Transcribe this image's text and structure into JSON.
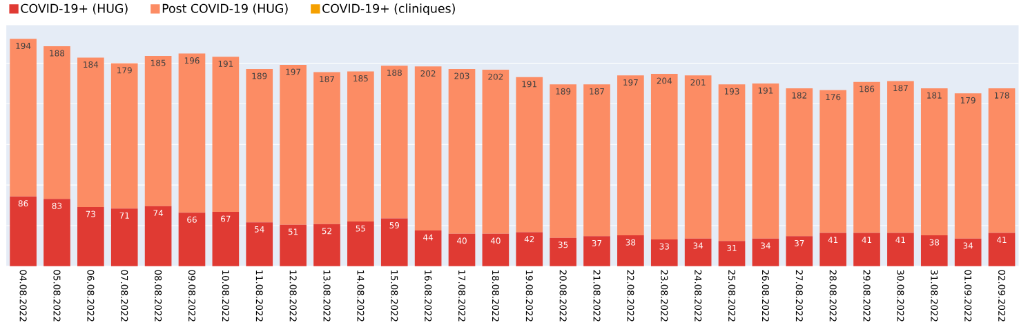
{
  "chart_data": {
    "type": "bar",
    "stacked": true,
    "data_labels": true,
    "grid": "y",
    "legend": "top left",
    "tick_labels": "x",
    "categories": [
      "04.08.2022",
      "05.08.2022",
      "06.08.2022",
      "07.08.2022",
      "08.08.2022",
      "09.08.2022",
      "10.08.2022",
      "11.08.2022",
      "12.08.2022",
      "13.08.2022",
      "14.08.2022",
      "15.08.2022",
      "16.08.2022",
      "17.08.2022",
      "18.08.2022",
      "19.08.2022",
      "20.08.2022",
      "21.08.2022",
      "22.08.2022",
      "23.08.2022",
      "24.08.2022",
      "25.08.2022",
      "26.08.2022",
      "27.08.2022",
      "28.08.2022",
      "29.08.2022",
      "30.08.2022",
      "31.08.2022",
      "01.09.2022",
      "02.09.2022"
    ],
    "series": [
      {
        "name": "COVID-19+ (HUG)",
        "color": "#e03a33",
        "values": [
          86,
          83,
          73,
          71,
          74,
          66,
          67,
          54,
          51,
          52,
          55,
          59,
          44,
          40,
          40,
          42,
          35,
          37,
          38,
          33,
          34,
          31,
          34,
          37,
          41,
          41,
          41,
          38,
          34,
          41
        ]
      },
      {
        "name": "Post COVID-19 (HUG)",
        "color": "#fc8c64",
        "values": [
          194,
          188,
          184,
          179,
          185,
          196,
          191,
          189,
          197,
          187,
          185,
          188,
          202,
          203,
          202,
          191,
          189,
          187,
          197,
          204,
          201,
          193,
          191,
          182,
          176,
          186,
          187,
          181,
          179,
          178
        ]
      },
      {
        "name": "COVID-19+ (cliniques)",
        "color": "#f5a000",
        "values": [
          null,
          null,
          null,
          null,
          null,
          null,
          null,
          null,
          null,
          null,
          null,
          null,
          null,
          null,
          null,
          null,
          null,
          null,
          null,
          null,
          null,
          null,
          null,
          null,
          null,
          null,
          null,
          null,
          null,
          null
        ]
      }
    ]
  }
}
